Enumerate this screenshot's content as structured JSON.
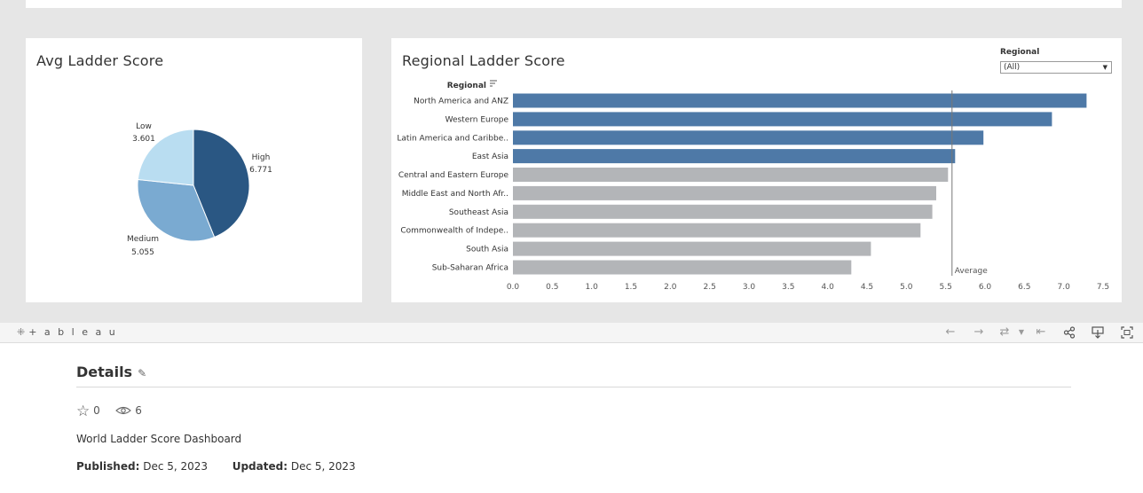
{
  "dashboard": {
    "pie": {
      "title": "Avg Ladder Score",
      "chart_data": {
        "type": "pie",
        "slices": [
          {
            "label": "High",
            "value": 6.771,
            "display": "6.771",
            "color": "#2a5783"
          },
          {
            "label": "Medium",
            "value": 5.055,
            "display": "5.055",
            "color": "#7aaad1"
          },
          {
            "label": "Low",
            "value": 3.601,
            "display": "3.601",
            "color": "#b9ddf1"
          }
        ]
      }
    },
    "bar": {
      "title": "Regional Ladder Score",
      "column_header": "Regional",
      "sort_icon": "sort-descending-icon",
      "reference_line_label": "Average",
      "chart_data": {
        "type": "bar",
        "orientation": "horizontal",
        "categories": [
          "North America and ANZ",
          "Western Europe",
          "Latin America and Caribbe..",
          "East Asia",
          "Central and Eastern Europe",
          "Middle East and North Afr..",
          "Southeast Asia",
          "Commonwealth of Indepe..",
          "South Asia",
          "Sub-Saharan Africa"
        ],
        "values": [
          7.29,
          6.85,
          5.98,
          5.62,
          5.53,
          5.38,
          5.33,
          5.18,
          4.55,
          4.3
        ],
        "highlight": [
          true,
          true,
          true,
          true,
          false,
          false,
          false,
          false,
          false,
          false
        ],
        "colors": {
          "above": "#4e79a7",
          "below": "#b3b5b8"
        },
        "average": 5.58,
        "xlim": [
          0,
          7.5
        ],
        "xticks": [
          "0.0",
          "0.5",
          "1.0",
          "1.5",
          "2.0",
          "2.5",
          "3.0",
          "3.5",
          "4.0",
          "4.5",
          "5.0",
          "5.5",
          "6.0",
          "6.5",
          "7.0",
          "7.5"
        ]
      }
    },
    "filter": {
      "label": "Regional",
      "value": "(All)"
    }
  },
  "toolbar": {
    "logo_text": "+ a b l e a u",
    "buttons": [
      "undo-icon",
      "redo-icon",
      "revert-icon",
      "revert-dropdown-icon",
      "reset-icon",
      "share-icon",
      "download-icon",
      "fullscreen-icon"
    ]
  },
  "details": {
    "title": "Details",
    "favorites": "0",
    "views": "6",
    "description": "World Ladder Score Dashboard",
    "published_label": "Published:",
    "published_date": "Dec 5, 2023",
    "updated_label": "Updated:",
    "updated_date": "Dec 5, 2023"
  }
}
